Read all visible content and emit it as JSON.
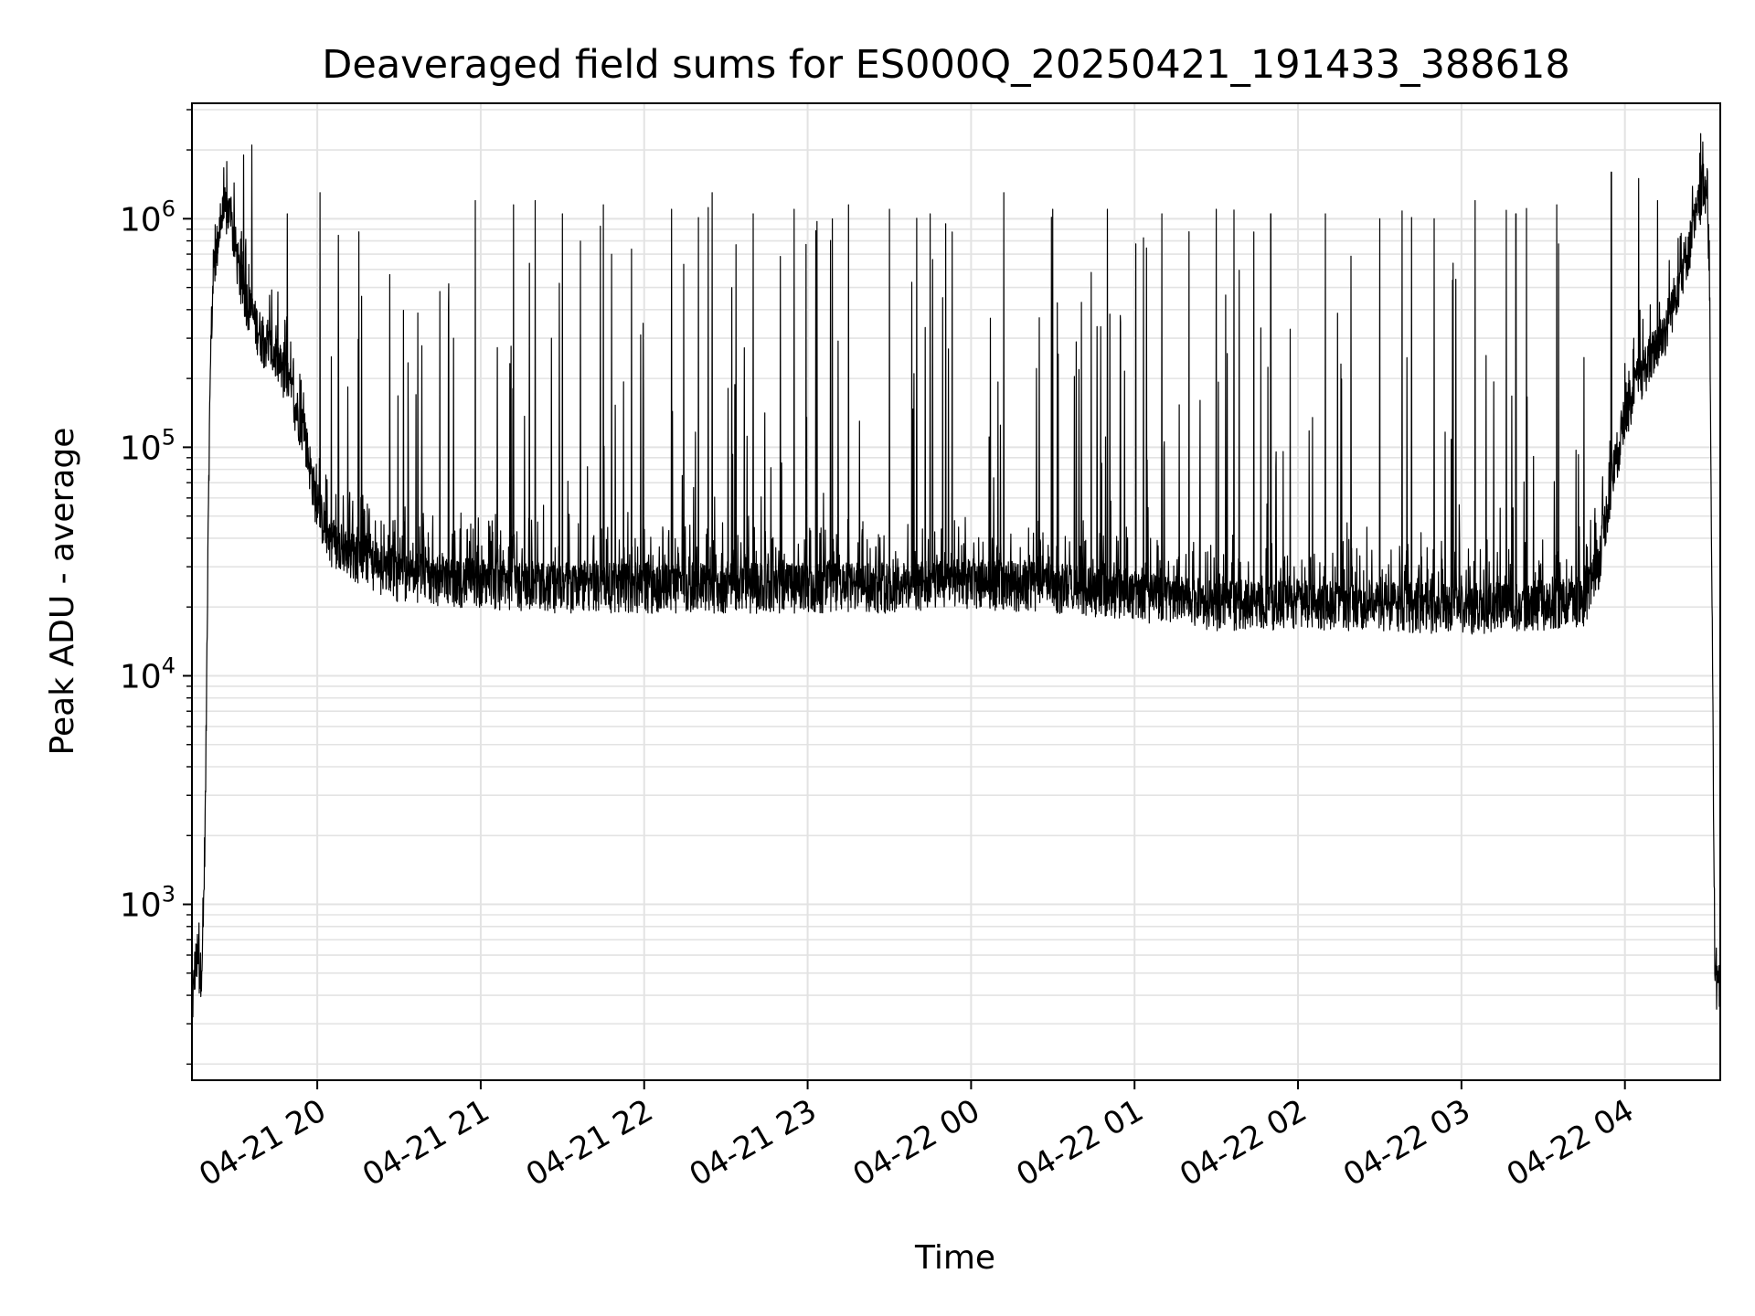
{
  "chart_data": {
    "type": "line",
    "title": "Deaveraged field sums for ES000Q_20250421_191433_388618",
    "xlabel": "Time",
    "ylabel": "Peak ADU - average",
    "y_scale": "log",
    "ylim": [
      170,
      3200000
    ],
    "xlim": [
      "2025-04-21 19:14",
      "2025-04-22 04:35"
    ],
    "grid": true,
    "series_color": "#000000",
    "x_ticks": [
      {
        "t": "2025-04-21 20:00",
        "label": "04-21 20"
      },
      {
        "t": "2025-04-21 21:00",
        "label": "04-21 21"
      },
      {
        "t": "2025-04-21 22:00",
        "label": "04-21 22"
      },
      {
        "t": "2025-04-21 23:00",
        "label": "04-21 23"
      },
      {
        "t": "2025-04-22 00:00",
        "label": "04-22 00"
      },
      {
        "t": "2025-04-22 01:00",
        "label": "04-22 01"
      },
      {
        "t": "2025-04-22 02:00",
        "label": "04-22 02"
      },
      {
        "t": "2025-04-22 03:00",
        "label": "04-22 03"
      },
      {
        "t": "2025-04-22 04:00",
        "label": "04-22 04"
      }
    ],
    "y_ticks": [
      {
        "value": 1000,
        "base": "10",
        "exp": "3"
      },
      {
        "value": 10000,
        "base": "10",
        "exp": "4"
      },
      {
        "value": 100000,
        "base": "10",
        "exp": "5"
      },
      {
        "value": 1000000,
        "base": "10",
        "exp": "6"
      }
    ],
    "series": [
      {
        "x": [
          "2025-04-21 19:14",
          "2025-04-21 19:15",
          "2025-04-21 19:16",
          "2025-04-21 19:17",
          "2025-04-21 19:18",
          "2025-04-21 19:19",
          "2025-04-21 19:20",
          "2025-04-21 19:21",
          "2025-04-21 19:22",
          "2025-04-21 19:24",
          "2025-04-21 19:26",
          "2025-04-21 19:28",
          "2025-04-21 19:30",
          "2025-04-21 19:32",
          "2025-04-21 19:34",
          "2025-04-21 19:36",
          "2025-04-21 19:40",
          "2025-04-21 19:45",
          "2025-04-21 19:50",
          "2025-04-21 19:55",
          "2025-04-21 20:00",
          "2025-04-21 20:05",
          "2025-04-21 20:15",
          "2025-04-21 20:30",
          "2025-04-21 21:00",
          "2025-04-21 21:30",
          "2025-04-21 22:00",
          "2025-04-21 22:30",
          "2025-04-21 23:00",
          "2025-04-21 23:30",
          "2025-04-22 00:00",
          "2025-04-22 00:30",
          "2025-04-22 01:00",
          "2025-04-22 01:30",
          "2025-04-22 02:00",
          "2025-04-22 02:30",
          "2025-04-22 03:00",
          "2025-04-22 03:30",
          "2025-04-22 03:45",
          "2025-04-22 03:50",
          "2025-04-22 03:55",
          "2025-04-22 04:00",
          "2025-04-22 04:05",
          "2025-04-22 04:10",
          "2025-04-22 04:15",
          "2025-04-22 04:20",
          "2025-04-22 04:24",
          "2025-04-22 04:26",
          "2025-04-22 04:28",
          "2025-04-22 04:29",
          "2025-04-22 04:30",
          "2025-04-22 04:31",
          "2025-04-22 04:32",
          "2025-04-22 04:33",
          "2025-04-22 04:34",
          "2025-04-22 04:35"
        ],
        "y": [
          330,
          520,
          600,
          480,
          650,
          3000,
          60000,
          300000,
          600000,
          900000,
          1100000,
          1050000,
          750000,
          520000,
          450000,
          380000,
          300000,
          250000,
          180000,
          120000,
          55000,
          40000,
          33000,
          28000,
          26000,
          25000,
          25000,
          25000,
          25000,
          25000,
          26000,
          25000,
          23000,
          21000,
          21000,
          21000,
          20000,
          21000,
          22000,
          30000,
          70000,
          140000,
          200000,
          260000,
          330000,
          550000,
          800000,
          1000000,
          1300000,
          1500000,
          1300000,
          700000,
          20000,
          500,
          420,
          450
        ],
        "spikes": [
          {
            "x": "2025-04-21 19:33",
            "y": 1900000
          },
          {
            "x": "2025-04-21 19:36",
            "y": 2100000
          },
          {
            "x": "2025-04-21 19:49",
            "y": 1050000
          },
          {
            "x": "2025-04-21 20:01",
            "y": 1300000
          },
          {
            "x": "2025-04-21 20:45",
            "y": 480000
          },
          {
            "x": "2025-04-21 20:50",
            "y": 300000
          },
          {
            "x": "2025-04-21 20:58",
            "y": 1200000
          },
          {
            "x": "2025-04-21 21:12",
            "y": 1150000
          },
          {
            "x": "2025-04-21 21:20",
            "y": 1200000
          },
          {
            "x": "2025-04-21 21:30",
            "y": 1050000
          },
          {
            "x": "2025-04-21 21:45",
            "y": 1150000
          },
          {
            "x": "2025-04-21 22:10",
            "y": 1100000
          },
          {
            "x": "2025-04-21 22:25",
            "y": 1300000
          },
          {
            "x": "2025-04-21 22:40",
            "y": 1050000
          },
          {
            "x": "2025-04-21 22:55",
            "y": 1100000
          },
          {
            "x": "2025-04-21 23:15",
            "y": 1150000
          },
          {
            "x": "2025-04-21 23:30",
            "y": 1100000
          },
          {
            "x": "2025-04-21 23:45",
            "y": 1050000
          },
          {
            "x": "2025-04-22 00:12",
            "y": 1300000
          },
          {
            "x": "2025-04-22 00:30",
            "y": 1100000
          },
          {
            "x": "2025-04-22 00:50",
            "y": 1100000
          },
          {
            "x": "2025-04-22 01:10",
            "y": 1050000
          },
          {
            "x": "2025-04-22 01:30",
            "y": 1100000
          },
          {
            "x": "2025-04-22 01:50",
            "y": 1050000
          },
          {
            "x": "2025-04-22 02:10",
            "y": 1050000
          },
          {
            "x": "2025-04-22 02:30",
            "y": 1000000
          },
          {
            "x": "2025-04-22 02:50",
            "y": 1000000
          },
          {
            "x": "2025-04-22 03:05",
            "y": 1200000
          },
          {
            "x": "2025-04-22 03:20",
            "y": 1050000
          },
          {
            "x": "2025-04-22 03:35",
            "y": 1150000
          },
          {
            "x": "2025-04-22 03:55",
            "y": 1600000
          },
          {
            "x": "2025-04-22 04:05",
            "y": 1500000
          },
          {
            "x": "2025-04-22 04:12",
            "y": 1200000
          }
        ]
      }
    ]
  }
}
